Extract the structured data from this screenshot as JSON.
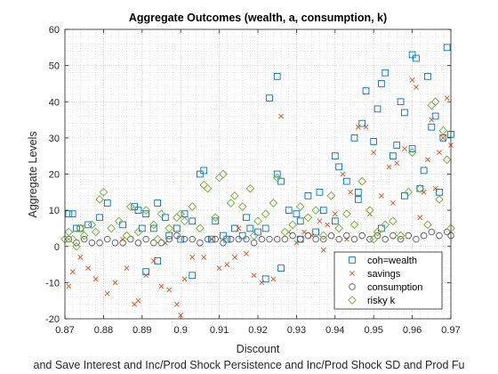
{
  "chart_data": {
    "type": "scatter",
    "title": "Aggregate Outcomes (wealth, a, consumption, k)",
    "xlabel": "Discount",
    "ylabel": "Aggregate Levels",
    "caption": "and Save Interest and Inc/Prod Shock Persistence and Inc/Prod Shock SD and Prod Fu",
    "xlim": [
      0.87,
      0.97
    ],
    "ylim": [
      -20,
      60
    ],
    "xticks": [
      "0.87",
      "0.88",
      "0.89",
      "0.9",
      "0.91",
      "0.92",
      "0.93",
      "0.94",
      "0.95",
      "0.96",
      "0.97"
    ],
    "yticks": [
      "-20",
      "-10",
      "0",
      "10",
      "20",
      "30",
      "40",
      "50",
      "60"
    ],
    "grid": "major and minor, dotted",
    "legend_position": "bottom-right",
    "colors": {
      "wealth": "#0072BD",
      "savings": "#D95319",
      "consumption": "#5a5a5a",
      "risky": "#77AC30"
    },
    "series": [
      {
        "name": "coh=wealth",
        "marker": "square",
        "color": "#0072BD",
        "points": [
          [
            0.871,
            9
          ],
          [
            0.872,
            9
          ],
          [
            0.873,
            5
          ],
          [
            0.874,
            5
          ],
          [
            0.876,
            6
          ],
          [
            0.879,
            8
          ],
          [
            0.881,
            12
          ],
          [
            0.885,
            6
          ],
          [
            0.888,
            11
          ],
          [
            0.889,
            10
          ],
          [
            0.89,
            5
          ],
          [
            0.891,
            9
          ],
          [
            0.893,
            5
          ],
          [
            0.894,
            12
          ],
          [
            0.896,
            8
          ],
          [
            0.897,
            3
          ],
          [
            0.899,
            5
          ],
          [
            0.9,
            2
          ],
          [
            0.901,
            9
          ],
          [
            0.903,
            7
          ],
          [
            0.905,
            20
          ],
          [
            0.906,
            21
          ],
          [
            0.908,
            2
          ],
          [
            0.909,
            7
          ],
          [
            0.911,
            3
          ],
          [
            0.912,
            2
          ],
          [
            0.914,
            5
          ],
          [
            0.916,
            3
          ],
          [
            0.918,
            5
          ],
          [
            0.92,
            4
          ],
          [
            0.922,
            5
          ],
          [
            0.923,
            41
          ],
          [
            0.925,
            47
          ],
          [
            0.925,
            20
          ],
          [
            0.926,
            18
          ],
          [
            0.928,
            10
          ],
          [
            0.93,
            9
          ],
          [
            0.931,
            7
          ],
          [
            0.933,
            14
          ],
          [
            0.935,
            4
          ],
          [
            0.936,
            15
          ],
          [
            0.937,
            10
          ],
          [
            0.94,
            25
          ],
          [
            0.941,
            22
          ],
          [
            0.943,
            18
          ],
          [
            0.945,
            30
          ],
          [
            0.946,
            15
          ],
          [
            0.947,
            34
          ],
          [
            0.948,
            43
          ],
          [
            0.95,
            29
          ],
          [
            0.951,
            38
          ],
          [
            0.952,
            45
          ],
          [
            0.953,
            48
          ],
          [
            0.955,
            25
          ],
          [
            0.956,
            28
          ],
          [
            0.957,
            40
          ],
          [
            0.958,
            37
          ],
          [
            0.96,
            53
          ],
          [
            0.961,
            52
          ],
          [
            0.963,
            21
          ],
          [
            0.964,
            47
          ],
          [
            0.965,
            33
          ],
          [
            0.966,
            36
          ],
          [
            0.968,
            30
          ],
          [
            0.969,
            55
          ],
          [
            0.97,
            31
          ],
          [
            0.952,
            5
          ],
          [
            0.958,
            14
          ],
          [
            0.962,
            16
          ],
          [
            0.96,
            27
          ],
          [
            0.967,
            15
          ],
          [
            0.894,
            -4
          ],
          [
            0.891,
            -7
          ],
          [
            0.903,
            -8
          ],
          [
            0.922,
            -9
          ],
          [
            0.926,
            -6
          ],
          [
            0.931,
            2
          ],
          [
            0.946,
            13
          ],
          [
            0.94,
            7
          ],
          [
            0.917,
            8
          ]
        ]
      },
      {
        "name": "savings",
        "marker": "x",
        "color": "#D95319",
        "points": [
          [
            0.871,
            -11
          ],
          [
            0.872,
            -7
          ],
          [
            0.874,
            -3
          ],
          [
            0.876,
            -6
          ],
          [
            0.878,
            -9
          ],
          [
            0.881,
            -13
          ],
          [
            0.883,
            -10
          ],
          [
            0.886,
            -6
          ],
          [
            0.888,
            -16
          ],
          [
            0.889,
            -15
          ],
          [
            0.891,
            -8
          ],
          [
            0.893,
            -4
          ],
          [
            0.895,
            -11
          ],
          [
            0.897,
            -12
          ],
          [
            0.899,
            -16
          ],
          [
            0.9,
            -19
          ],
          [
            0.901,
            -9
          ],
          [
            0.903,
            -3
          ],
          [
            0.906,
            -3
          ],
          [
            0.908,
            2
          ],
          [
            0.91,
            -6
          ],
          [
            0.912,
            -5
          ],
          [
            0.914,
            -3
          ],
          [
            0.917,
            -2
          ],
          [
            0.919,
            -8
          ],
          [
            0.921,
            -10
          ],
          [
            0.924,
            -9
          ],
          [
            0.926,
            36
          ],
          [
            0.928,
            4
          ],
          [
            0.93,
            1
          ],
          [
            0.932,
            4
          ],
          [
            0.934,
            3
          ],
          [
            0.936,
            7
          ],
          [
            0.938,
            6
          ],
          [
            0.94,
            9
          ],
          [
            0.942,
            20
          ],
          [
            0.944,
            15
          ],
          [
            0.946,
            33
          ],
          [
            0.948,
            33
          ],
          [
            0.95,
            26
          ],
          [
            0.952,
            14
          ],
          [
            0.954,
            22
          ],
          [
            0.956,
            23
          ],
          [
            0.958,
            27
          ],
          [
            0.96,
            46
          ],
          [
            0.961,
            44
          ],
          [
            0.963,
            15
          ],
          [
            0.964,
            24
          ],
          [
            0.965,
            35
          ],
          [
            0.967,
            26
          ],
          [
            0.968,
            30
          ],
          [
            0.969,
            41
          ],
          [
            0.97,
            28
          ],
          [
            0.955,
            12
          ],
          [
            0.962,
            8
          ],
          [
            0.966,
            16
          ],
          [
            0.943,
            2
          ],
          [
            0.937,
            -1
          ],
          [
            0.885,
            2
          ],
          [
            0.896,
            1
          ],
          [
            0.915,
            5
          ],
          [
            0.949,
            9
          ]
        ]
      },
      {
        "name": "consumption",
        "marker": "circle",
        "color": "#5a5a5a",
        "points": [
          [
            0.871,
            2
          ],
          [
            0.873,
            1
          ],
          [
            0.875,
            2
          ],
          [
            0.877,
            1
          ],
          [
            0.879,
            1
          ],
          [
            0.881,
            2
          ],
          [
            0.883,
            1
          ],
          [
            0.885,
            1
          ],
          [
            0.887,
            2
          ],
          [
            0.889,
            1
          ],
          [
            0.891,
            2
          ],
          [
            0.893,
            1
          ],
          [
            0.895,
            1
          ],
          [
            0.897,
            2
          ],
          [
            0.899,
            3
          ],
          [
            0.901,
            2
          ],
          [
            0.903,
            2
          ],
          [
            0.905,
            1
          ],
          [
            0.907,
            2
          ],
          [
            0.909,
            2
          ],
          [
            0.911,
            1
          ],
          [
            0.913,
            2
          ],
          [
            0.915,
            2
          ],
          [
            0.917,
            2
          ],
          [
            0.919,
            1
          ],
          [
            0.921,
            2
          ],
          [
            0.923,
            2
          ],
          [
            0.925,
            2
          ],
          [
            0.927,
            2
          ],
          [
            0.929,
            3
          ],
          [
            0.931,
            2
          ],
          [
            0.933,
            3
          ],
          [
            0.935,
            2
          ],
          [
            0.937,
            2
          ],
          [
            0.939,
            3
          ],
          [
            0.941,
            2
          ],
          [
            0.943,
            3
          ],
          [
            0.945,
            2
          ],
          [
            0.947,
            3
          ],
          [
            0.949,
            2
          ],
          [
            0.951,
            3
          ],
          [
            0.953,
            2
          ],
          [
            0.955,
            3
          ],
          [
            0.957,
            2
          ],
          [
            0.959,
            3
          ],
          [
            0.961,
            2
          ],
          [
            0.963,
            3
          ],
          [
            0.965,
            4
          ],
          [
            0.967,
            3
          ],
          [
            0.969,
            4
          ],
          [
            0.97,
            3
          ]
        ]
      },
      {
        "name": "risky k",
        "marker": "diamond",
        "color": "#77AC30",
        "points": [
          [
            0.871,
            4
          ],
          [
            0.872,
            2
          ],
          [
            0.874,
            5
          ],
          [
            0.875,
            3
          ],
          [
            0.877,
            6
          ],
          [
            0.878,
            4
          ],
          [
            0.879,
            13
          ],
          [
            0.88,
            15
          ],
          [
            0.882,
            5
          ],
          [
            0.884,
            7
          ],
          [
            0.886,
            3
          ],
          [
            0.887,
            11
          ],
          [
            0.889,
            4
          ],
          [
            0.891,
            10
          ],
          [
            0.893,
            6
          ],
          [
            0.895,
            9
          ],
          [
            0.897,
            5
          ],
          [
            0.899,
            8
          ],
          [
            0.9,
            9
          ],
          [
            0.901,
            7
          ],
          [
            0.903,
            11
          ],
          [
            0.905,
            5
          ],
          [
            0.906,
            17
          ],
          [
            0.907,
            16
          ],
          [
            0.909,
            8
          ],
          [
            0.91,
            19
          ],
          [
            0.911,
            20
          ],
          [
            0.913,
            12
          ],
          [
            0.914,
            14
          ],
          [
            0.916,
            11
          ],
          [
            0.918,
            16
          ],
          [
            0.92,
            7
          ],
          [
            0.922,
            9
          ],
          [
            0.924,
            12
          ],
          [
            0.925,
            19
          ],
          [
            0.927,
            4
          ],
          [
            0.929,
            6
          ],
          [
            0.931,
            11
          ],
          [
            0.933,
            8
          ],
          [
            0.935,
            10
          ],
          [
            0.937,
            3
          ],
          [
            0.939,
            14
          ],
          [
            0.941,
            5
          ],
          [
            0.943,
            9
          ],
          [
            0.945,
            6
          ],
          [
            0.947,
            18
          ],
          [
            0.949,
            10
          ],
          [
            0.951,
            4
          ],
          [
            0.953,
            6
          ],
          [
            0.955,
            7
          ],
          [
            0.957,
            3
          ],
          [
            0.959,
            15
          ],
          [
            0.96,
            26
          ],
          [
            0.962,
            16
          ],
          [
            0.964,
            6
          ],
          [
            0.965,
            39
          ],
          [
            0.966,
            40
          ],
          [
            0.967,
            13
          ],
          [
            0.968,
            32
          ],
          [
            0.969,
            24
          ],
          [
            0.97,
            5
          ],
          [
            0.87,
            2
          ],
          [
            0.873,
            0
          ],
          [
            0.894,
            2
          ],
          [
            0.919,
            3
          ],
          [
            0.95,
            2
          ]
        ]
      }
    ]
  }
}
